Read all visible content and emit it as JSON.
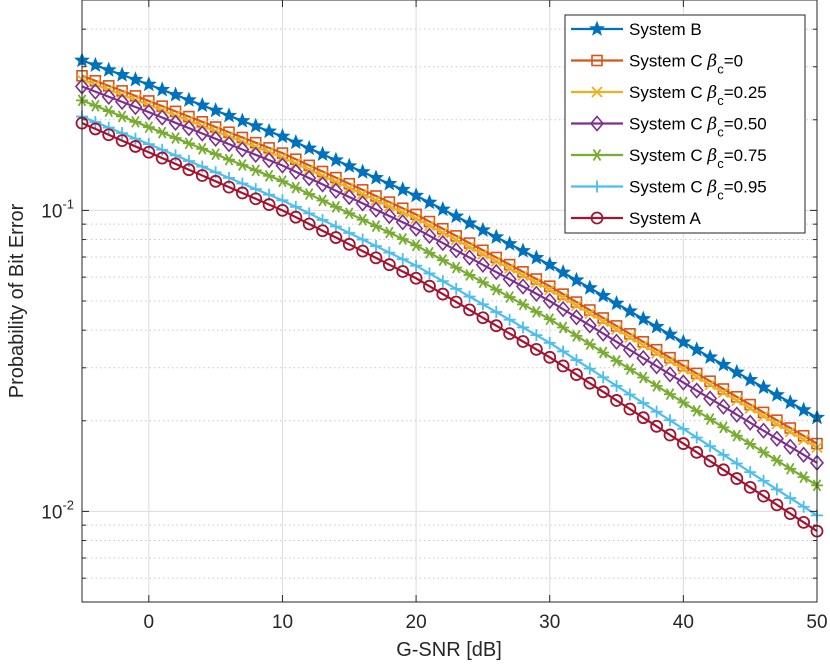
{
  "chart_data": {
    "type": "line",
    "xlabel": "G-SNR [dB]",
    "ylabel": "Probability of Bit Error",
    "xlim": [
      -5,
      50
    ],
    "ylim": [
      0.005,
      0.5
    ],
    "yscale": "log",
    "grid": true,
    "legend_position": "top-right",
    "x_ticks": [
      0,
      10,
      20,
      30,
      40,
      50
    ],
    "y_major_ticks": [
      {
        "value": 0.1,
        "base": "10",
        "exp": "-1"
      },
      {
        "value": 0.01,
        "base": "10",
        "exp": "-2"
      }
    ],
    "x_start": -5,
    "x_end": 50,
    "x_step": 1,
    "series": [
      {
        "name": "System B",
        "label_main": "System B",
        "label_sub": "",
        "label_tail": "",
        "marker": "star",
        "color": "#0072BD",
        "knots": [
          [
            -5,
            0.315
          ],
          [
            0,
            0.262
          ],
          [
            10,
            0.176
          ],
          [
            20,
            0.112
          ],
          [
            30,
            0.066
          ],
          [
            40,
            0.0365
          ],
          [
            50,
            0.0205
          ]
        ]
      },
      {
        "name": "System C βc=0",
        "label_main": "System C ",
        "label_greek": "β",
        "label_sub": "c",
        "label_tail": "=0",
        "marker": "square",
        "color": "#D95319",
        "knots": [
          [
            -5,
            0.28
          ],
          [
            0,
            0.231
          ],
          [
            10,
            0.155
          ],
          [
            20,
            0.097
          ],
          [
            30,
            0.056
          ],
          [
            40,
            0.0305
          ],
          [
            50,
            0.0168
          ]
        ]
      },
      {
        "name": "System C βc=0.25",
        "label_main": "System C ",
        "label_greek": "β",
        "label_sub": "c",
        "label_tail": "=0.25",
        "marker": "x",
        "color": "#EDB120",
        "knots": [
          [
            -5,
            0.272
          ],
          [
            0,
            0.224
          ],
          [
            10,
            0.15
          ],
          [
            20,
            0.094
          ],
          [
            30,
            0.0545
          ],
          [
            40,
            0.0297
          ],
          [
            50,
            0.0163
          ]
        ]
      },
      {
        "name": "System C βc=0.50",
        "label_main": "System C ",
        "label_greek": "β",
        "label_sub": "c",
        "label_tail": "=0.50",
        "marker": "diamond",
        "color": "#7E2F8E",
        "knots": [
          [
            -5,
            0.258
          ],
          [
            0,
            0.212
          ],
          [
            10,
            0.141
          ],
          [
            20,
            0.087
          ],
          [
            30,
            0.05
          ],
          [
            40,
            0.0268
          ],
          [
            50,
            0.0145
          ]
        ]
      },
      {
        "name": "System C βc=0.75",
        "label_main": "System C ",
        "label_greek": "β",
        "label_sub": "c",
        "label_tail": "=0.75",
        "marker": "asterisk",
        "color": "#77AC30",
        "knots": [
          [
            -5,
            0.232
          ],
          [
            0,
            0.189
          ],
          [
            10,
            0.125
          ],
          [
            20,
            0.0765
          ],
          [
            30,
            0.0435
          ],
          [
            40,
            0.023
          ],
          [
            50,
            0.0122
          ]
        ]
      },
      {
        "name": "System C βc=0.95",
        "label_main": "System C ",
        "label_greek": "β",
        "label_sub": "c",
        "label_tail": "=0.95",
        "marker": "plus",
        "color": "#4DBEEE",
        "knots": [
          [
            -5,
            0.205
          ],
          [
            0,
            0.166
          ],
          [
            10,
            0.108
          ],
          [
            20,
            0.0655
          ],
          [
            30,
            0.0363
          ],
          [
            40,
            0.0188
          ],
          [
            50,
            0.0097
          ]
        ]
      },
      {
        "name": "System A",
        "label_main": "System A",
        "label_sub": "",
        "label_tail": "",
        "marker": "circle",
        "color": "#A2142F",
        "knots": [
          [
            -5,
            0.195
          ],
          [
            0,
            0.156
          ],
          [
            10,
            0.1
          ],
          [
            20,
            0.0595
          ],
          [
            30,
            0.0325
          ],
          [
            40,
            0.0168
          ],
          [
            50,
            0.0086
          ]
        ]
      }
    ]
  }
}
